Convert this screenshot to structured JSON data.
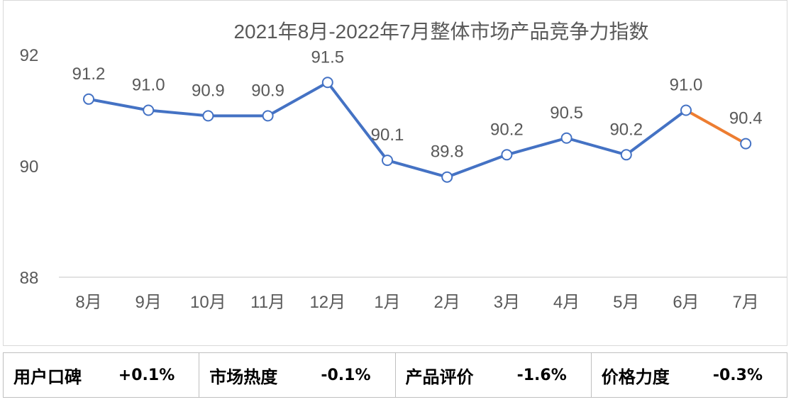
{
  "chart_data": {
    "type": "line",
    "title": "2021年8月-2022年7月整体市场产品竞争力指数",
    "categories": [
      "8月",
      "9月",
      "10月",
      "11月",
      "12月",
      "1月",
      "2月",
      "3月",
      "4月",
      "5月",
      "6月",
      "7月"
    ],
    "values": [
      91.2,
      91.0,
      90.9,
      90.9,
      91.5,
      90.1,
      89.8,
      90.2,
      90.5,
      90.2,
      91.0,
      90.4
    ],
    "value_labels": [
      "91.2",
      "91.0",
      "90.9",
      "90.9",
      "91.5",
      "90.1",
      "89.8",
      "90.2",
      "90.5",
      "90.2",
      "91.0",
      "90.4"
    ],
    "ylim": [
      88,
      92
    ],
    "yticks": [
      "88",
      "90",
      "92"
    ],
    "colors": {
      "main": "#4472c4",
      "last_segment": "#ed7d31",
      "text": "#595959",
      "axis": "#d9d9d9"
    }
  },
  "summary": [
    {
      "label": "用户口碑",
      "value": "+0.1%"
    },
    {
      "label": "市场热度",
      "value": "-0.1%"
    },
    {
      "label": "产品评价",
      "value": "-1.6%"
    },
    {
      "label": "价格力度",
      "value": "-0.3%"
    }
  ]
}
